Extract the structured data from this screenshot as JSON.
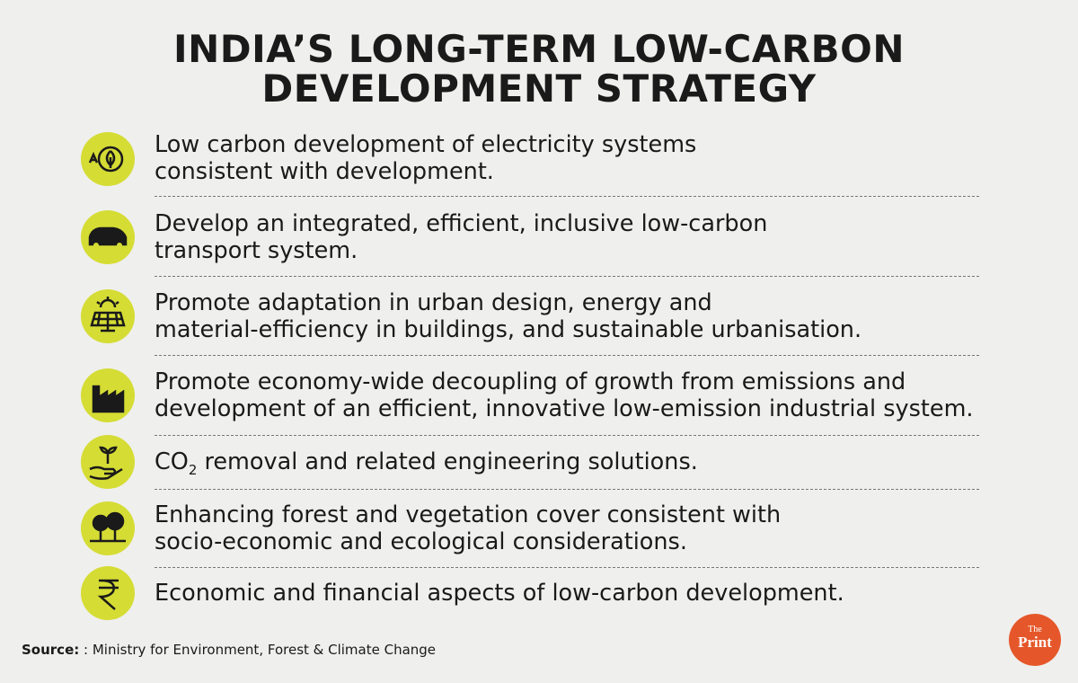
{
  "header": {
    "title_lines": [
      "INDIA’S LONG-TERM LOW-CARBON",
      "DEVELOPMENT STRATEGY"
    ]
  },
  "items": [
    {
      "lines": [
        "Low carbon development of electricity systems",
        "consistent with development."
      ]
    },
    {
      "lines": [
        "Develop an integrated, efficient, inclusive low-carbon",
        "transport system."
      ]
    },
    {
      "lines": [
        "Promote adaptation in urban design, energy and",
        "material-efficiency in buildings, and sustainable urbanisation."
      ]
    },
    {
      "lines": [
        "Promote economy-wide decoupling of growth from emissions and",
        "development of an efficient, innovative low-emission industrial system."
      ]
    },
    {
      "formula": "CO",
      "subscript": "2",
      "rest": "removal and related engineering solutions."
    },
    {
      "lines": [
        "Enhancing forest and vegetation cover consistent with",
        "socio-economic and ecological considerations."
      ]
    },
    {
      "lines": [
        "Economic and financial aspects of low-carbon development."
      ]
    }
  ],
  "footer": {
    "source_label": "Source:",
    "source_text": ": Ministry for Environment, Forest & Climate Change",
    "logo_small": "The",
    "logo_main": "Print"
  }
}
